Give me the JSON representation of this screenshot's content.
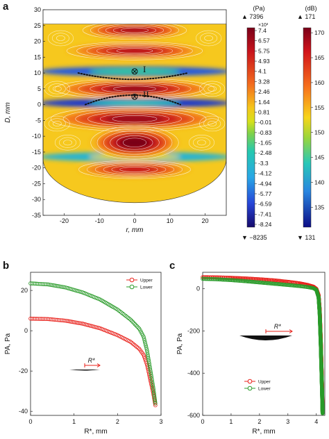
{
  "panel_labels": {
    "a": "a",
    "b": "b",
    "c": "c"
  },
  "chart_data": [
    {
      "type": "heatmap",
      "panel": "a",
      "xlabel": "r, mm",
      "ylabel": "D, mm",
      "xticks": [
        -20,
        -10,
        0,
        10,
        20
      ],
      "yticks": [
        -35,
        -30,
        -25,
        -20,
        -15,
        -10,
        -5,
        0,
        5,
        10,
        15,
        20,
        25,
        30
      ],
      "xlim": [
        -26,
        26
      ],
      "ylim": [
        -35,
        30
      ],
      "domain": {
        "top": 25.5,
        "side_half_width": 26,
        "side_bottom": -17,
        "bottom": -31
      },
      "bands": [
        {
          "y": 23.5,
          "level": 0.92,
          "halfwidth": 13,
          "height": 2.2
        },
        {
          "y": 17,
          "level": 0.9,
          "halfwidth": 17,
          "height": 2.2
        },
        {
          "y": 5,
          "level": 0.95,
          "halfwidth": 20,
          "height": 2.5
        },
        {
          "y": -4.5,
          "level": 0.95,
          "halfwidth": 21,
          "height": 3.0
        },
        {
          "y": -12,
          "level": 1.0,
          "halfwidth": 11,
          "height": 4.0
        },
        {
          "y": -20.5,
          "level": 0.88,
          "halfwidth": 14,
          "height": 2.2
        }
      ],
      "nodal_bands": [
        {
          "y": 10.5,
          "level": 0.15
        },
        {
          "y": 0.5,
          "level": 0.1
        },
        {
          "y": -16.5,
          "level": 0.3
        }
      ],
      "markers": [
        {
          "label": "I",
          "r": 0,
          "D": 10.5
        },
        {
          "label": "II",
          "r": 0,
          "D": 2.5
        }
      ],
      "dotted_curves": [
        {
          "from_r": -16,
          "to_r": 15,
          "D_edge": 10,
          "D_center": 8,
          "sag": "down"
        },
        {
          "from_r": -14,
          "to_r": 13,
          "D_edge": 0,
          "D_center": 3,
          "sag": "up"
        }
      ],
      "colorbar_pa": {
        "unit": "(Pa)",
        "max_label": "▲ 7396",
        "min_label": "▼ −8235",
        "exponent": "×10³",
        "ticks": [
          "7.4",
          "6.57",
          "5.75",
          "4.93",
          "4.1",
          "3.28",
          "2.46",
          "1.64",
          "0.81",
          "-0.01",
          "-0.83",
          "-1.65",
          "-2.48",
          "-3.3",
          "-4.12",
          "-4.94",
          "-5.77",
          "-6.59",
          "-7.41",
          "-8.24"
        ]
      },
      "colorbar_db": {
        "unit": "(dB)",
        "max_label": "▲ 171",
        "min_label": "▼ 131",
        "range": [
          131,
          171
        ],
        "ticks": [
          170,
          165,
          160,
          155,
          150,
          145,
          140,
          135
        ]
      }
    },
    {
      "type": "scatter",
      "panel": "b",
      "xlabel": "R*, mm",
      "ylabel": "PA, Pa",
      "xlim": [
        0,
        3.0
      ],
      "ylim": [
        -42,
        29
      ],
      "xticks": [
        0,
        1,
        2,
        3
      ],
      "yticks": [
        -40,
        -20,
        0,
        20
      ],
      "legend_position": "top-right",
      "inset_label": "R*",
      "series": [
        {
          "name": "Upper",
          "color": "#e8201a",
          "x": [
            0,
            0.4,
            0.8,
            1.2,
            1.6,
            2.0,
            2.3,
            2.5,
            2.6,
            2.68,
            2.75,
            2.82,
            2.87
          ],
          "y": [
            6,
            5.8,
            5,
            3.5,
            1.2,
            -2.2,
            -5.5,
            -9,
            -12,
            -17,
            -24,
            -31,
            -37
          ]
        },
        {
          "name": "Lower",
          "color": "#2a9b2a",
          "x": [
            0,
            0.4,
            0.8,
            1.2,
            1.6,
            2.0,
            2.3,
            2.5,
            2.6,
            2.68,
            2.75,
            2.82,
            2.87
          ],
          "y": [
            23.5,
            23,
            21.5,
            19,
            15.5,
            10.5,
            5.5,
            1,
            -3,
            -10,
            -19,
            -28,
            -36
          ]
        }
      ]
    },
    {
      "type": "scatter",
      "panel": "c",
      "xlabel": "R*, mm",
      "ylabel": "PA, Pa",
      "xlim": [
        0,
        4.3
      ],
      "ylim": [
        -600,
        78
      ],
      "xticks": [
        0,
        1,
        2,
        3,
        4
      ],
      "yticks": [
        -600,
        -400,
        -200,
        0
      ],
      "legend_position": "bottom-left",
      "inset_label": "R*",
      "series": [
        {
          "name": "Upper",
          "color": "#e8201a",
          "x": [
            0,
            0.5,
            1.0,
            1.5,
            2.0,
            2.5,
            3.0,
            3.4,
            3.7,
            3.9,
            4.0,
            4.08,
            4.12,
            4.16,
            4.2,
            4.22
          ],
          "y": [
            55,
            54,
            52,
            49,
            45,
            40,
            33,
            26,
            18,
            10,
            0,
            -30,
            -100,
            -250,
            -450,
            -585
          ]
        },
        {
          "name": "Lower",
          "color": "#2a9b2a",
          "x": [
            0,
            0.5,
            1.0,
            1.5,
            2.0,
            2.5,
            3.0,
            3.4,
            3.7,
            3.9,
            4.0,
            4.08,
            4.12,
            4.16,
            4.2,
            4.22
          ],
          "y": [
            47,
            45,
            41,
            36,
            30,
            24,
            18,
            13,
            8,
            3,
            -5,
            -40,
            -120,
            -280,
            -480,
            -590
          ]
        }
      ]
    }
  ]
}
